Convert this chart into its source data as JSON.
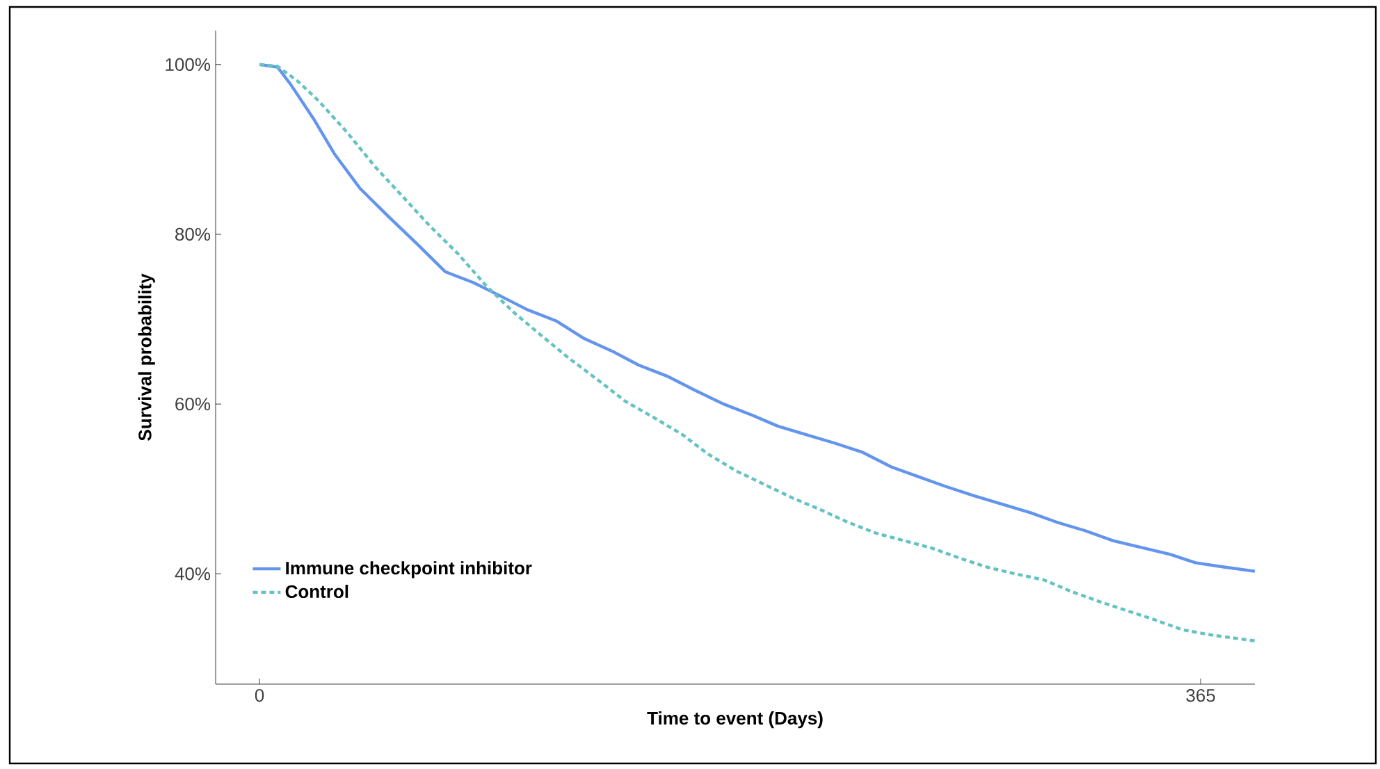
{
  "chart_data": {
    "type": "line",
    "xlabel": "Time to event (Days)",
    "ylabel": "Survival probability",
    "xlim": [
      -17,
      386
    ],
    "ylim": [
      27,
      104
    ],
    "xticks": [
      0,
      365
    ],
    "yticks": [
      {
        "value": 40,
        "label": "40%"
      },
      {
        "value": 60,
        "label": "60%"
      },
      {
        "value": 80,
        "label": "80%"
      },
      {
        "value": 100,
        "label": "100%"
      }
    ],
    "grid": false,
    "legend": "bottom left",
    "marker": "none",
    "series": [
      {
        "name": "Immune checkpoint inhibitor",
        "color": "#6495ed",
        "line_style": "solid",
        "x": [
          0,
          7,
          12,
          21,
          29,
          39,
          50,
          61,
          72,
          83,
          93,
          104,
          115,
          126,
          137,
          147,
          158,
          169,
          180,
          191,
          201,
          212,
          223,
          234,
          245,
          255,
          266,
          277,
          288,
          299,
          309,
          320,
          331,
          342,
          353,
          363,
          374,
          386
        ],
        "values": [
          100,
          99.7,
          97.7,
          93.6,
          89.5,
          85.4,
          82.1,
          78.9,
          75.6,
          74.3,
          72.8,
          71.1,
          69.8,
          67.7,
          66.2,
          64.6,
          63.3,
          61.6,
          60.0,
          58.7,
          57.4,
          56.4,
          55.4,
          54.3,
          52.6,
          51.5,
          50.3,
          49.2,
          48.2,
          47.2,
          46.1,
          45.1,
          43.9,
          43.1,
          42.3,
          41.3,
          40.8,
          40.3
        ]
      },
      {
        "name": "Control",
        "color": "#66c2c2",
        "line_style": "dashed",
        "x": [
          0,
          7,
          15,
          23,
          34,
          45,
          56,
          66,
          77,
          88,
          99,
          110,
          120,
          131,
          142,
          153,
          164,
          174,
          185,
          196,
          207,
          218,
          228,
          239,
          250,
          261,
          272,
          282,
          293,
          304,
          315,
          326,
          336,
          347,
          358,
          369,
          386
        ],
        "values": [
          100,
          99.8,
          98.0,
          95.7,
          92.0,
          87.9,
          84.3,
          81.0,
          77.7,
          73.9,
          70.7,
          67.9,
          65.4,
          62.9,
          60.3,
          58.4,
          56.4,
          54.1,
          52.1,
          50.5,
          48.9,
          47.5,
          46.1,
          44.8,
          43.9,
          43.0,
          41.8,
          40.8,
          40.0,
          39.3,
          37.9,
          36.7,
          35.7,
          34.6,
          33.4,
          32.8,
          32.1
        ]
      }
    ]
  }
}
